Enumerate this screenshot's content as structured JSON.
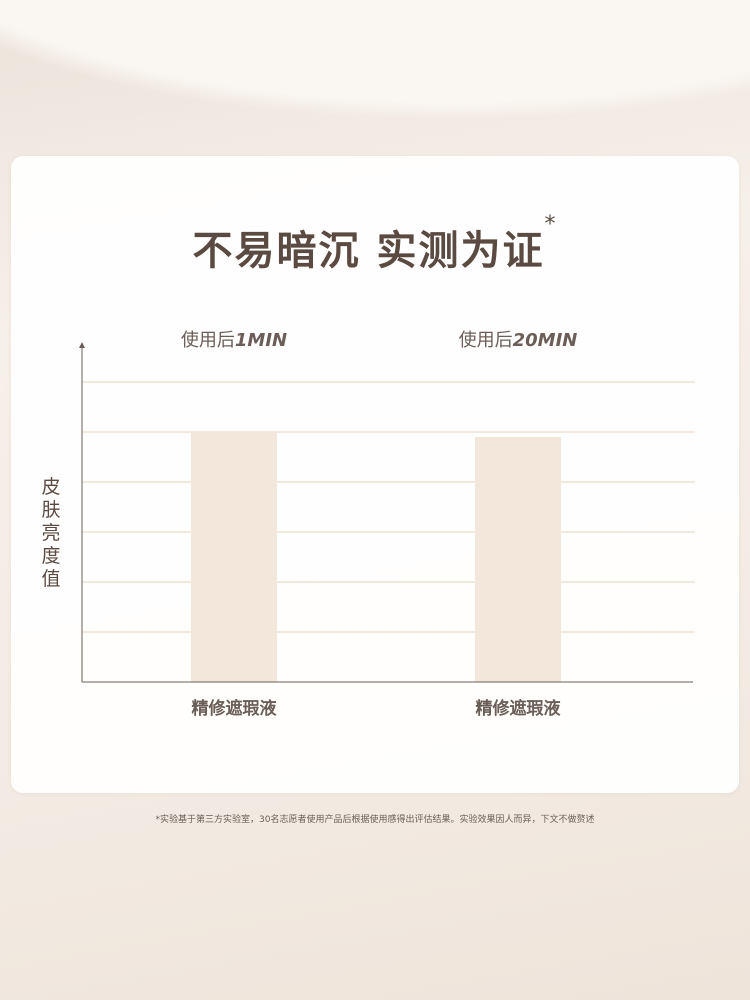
{
  "title": "不易暗沉 实测为证",
  "title_mark": "*",
  "footnote": "*实验基于第三方实验室，30名志愿者使用产品后根据使用感得出评估结果。实验效果因人而异，下文不做赘述",
  "chart_data": {
    "type": "bar",
    "ylabel": "皮肤亮度值",
    "group_titles": [
      {
        "prefix": "使用后",
        "time": "1MIN"
      },
      {
        "prefix": "使用后",
        "time": "20MIN"
      }
    ],
    "categories": [
      "精修遮瑕液",
      "精修遮瑕液"
    ],
    "values": [
      5.0,
      4.9
    ],
    "gridlines": [
      1,
      2,
      3,
      4,
      5,
      6
    ],
    "ylim": [
      0,
      6.8
    ],
    "grid": true,
    "colors": {
      "bar": "#f3e7dc",
      "grid": "#e6d2bf",
      "axis": "#6b5d57",
      "text": "#5b4a42"
    }
  }
}
